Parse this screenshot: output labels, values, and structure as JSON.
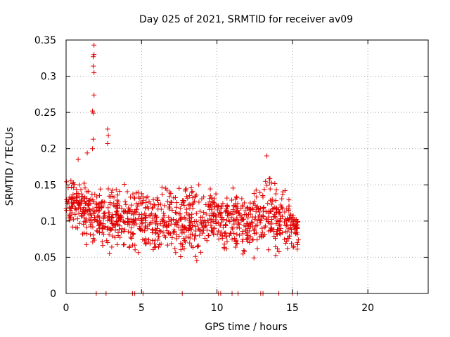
{
  "chart_data": {
    "type": "scatter",
    "title": "Day 025 of 2021, SRMTID for receiver av09",
    "xlabel": "GPS time / hours",
    "ylabel": "SRMTID / TECUs",
    "xlim": [
      0,
      24
    ],
    "ylim": [
      0,
      0.35
    ],
    "xticks": [
      0,
      5,
      10,
      15,
      20
    ],
    "xtick_labels": [
      "0",
      "5",
      "10",
      "15",
      "20"
    ],
    "yticks": [
      0,
      0.05,
      0.1,
      0.15,
      0.2,
      0.25,
      0.3,
      0.35
    ],
    "ytick_labels": [
      "0",
      "0.05",
      "0.1",
      "0.15",
      "0.2",
      "0.25",
      "0.3",
      "0.35"
    ],
    "grid": true,
    "marker": "+",
    "series": [
      {
        "name": "SRMTID",
        "color": "#e00000",
        "description": "dense scatter of SRMTID values between about 0.02 and 0.19 TECU from 0 to 15.4 hours, with isolated peaks near 1.8 h",
        "x_range": [
          0,
          15.4
        ],
        "band_low": [
          [
            0,
            0.08
          ],
          [
            2,
            0.05
          ],
          [
            4,
            0.05
          ],
          [
            6,
            0.04
          ],
          [
            8,
            0.03
          ],
          [
            10,
            0.05
          ],
          [
            12,
            0.04
          ],
          [
            14,
            0.04
          ],
          [
            15.4,
            0.05
          ]
        ],
        "band_high": [
          [
            0,
            0.16
          ],
          [
            1,
            0.18
          ],
          [
            2,
            0.16
          ],
          [
            4,
            0.16
          ],
          [
            6,
            0.16
          ],
          [
            8,
            0.17
          ],
          [
            10,
            0.16
          ],
          [
            12,
            0.15
          ],
          [
            13.5,
            0.18
          ],
          [
            15.4,
            0.13
          ]
        ],
        "peaks": [
          {
            "x": 1.85,
            "y": 0.343
          },
          {
            "x": 1.85,
            "y": 0.33
          },
          {
            "x": 1.8,
            "y": 0.327
          },
          {
            "x": 1.8,
            "y": 0.314
          },
          {
            "x": 1.85,
            "y": 0.305
          },
          {
            "x": 1.85,
            "y": 0.274
          },
          {
            "x": 1.75,
            "y": 0.252
          },
          {
            "x": 1.8,
            "y": 0.249
          },
          {
            "x": 1.8,
            "y": 0.213
          },
          {
            "x": 1.75,
            "y": 0.2
          },
          {
            "x": 2.75,
            "y": 0.227
          },
          {
            "x": 2.8,
            "y": 0.218
          },
          {
            "x": 2.75,
            "y": 0.207
          },
          {
            "x": 1.4,
            "y": 0.194
          },
          {
            "x": 13.3,
            "y": 0.19
          },
          {
            "x": 0.8,
            "y": 0.185
          }
        ],
        "zero_points": [
          2.0,
          2.65,
          4.4,
          4.55,
          5.1,
          7.7,
          10.1,
          10.25,
          11.0,
          11.4,
          12.9,
          13.05,
          14.1,
          15.0,
          15.35
        ]
      }
    ]
  }
}
